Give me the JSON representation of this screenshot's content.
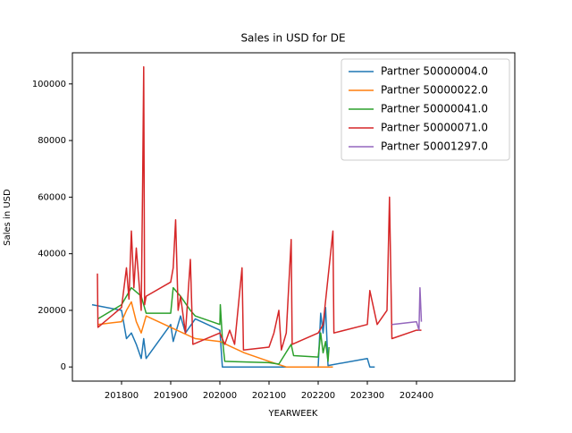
{
  "chart_data": {
    "type": "line",
    "title": "Sales in USD for DE",
    "x_label": "YEARWEEK",
    "y_label": "Sales in USD",
    "xlim": [
      201700,
      202600
    ],
    "xticks": [
      201800,
      201900,
      202000,
      202100,
      202200,
      202300,
      202400
    ],
    "ylim": [
      -5000,
      111000
    ],
    "yticks": [
      0,
      20000,
      40000,
      60000,
      80000,
      100000
    ],
    "legend": "upper right",
    "series": [
      {
        "name": "Partner 50000004.0",
        "color": "#1f77b4",
        "x": [
          201740,
          201800,
          201810,
          201820,
          201830,
          201840,
          201845,
          201850,
          201900,
          201905,
          201920,
          201930,
          201950,
          202000,
          202005,
          202100,
          202200,
          202205,
          202210,
          202215,
          202220,
          202300,
          202305,
          202315
        ],
        "values": [
          22000,
          20000,
          10000,
          12000,
          8000,
          3000,
          10000,
          3000,
          15000,
          9000,
          18000,
          12000,
          17000,
          13000,
          0,
          0,
          0,
          19000,
          12000,
          21000,
          500,
          3000,
          0,
          0
        ]
      },
      {
        "name": "Partner 50000022.0",
        "color": "#ff7f0e",
        "x": [
          201752,
          201800,
          201810,
          201820,
          201830,
          201840,
          201850,
          201900,
          201950,
          202000,
          202050,
          202100,
          202135,
          202230
        ],
        "values": [
          15000,
          16000,
          20000,
          23000,
          16000,
          12000,
          18000,
          14000,
          10000,
          9000,
          5000,
          2000,
          0,
          0
        ]
      },
      {
        "name": "Partner 50000041.0",
        "color": "#2ca02c",
        "x": [
          201752,
          201800,
          201820,
          201840,
          201850,
          201900,
          201905,
          201920,
          201940,
          201950,
          202000,
          202001,
          202005,
          202010,
          202100,
          202120,
          202145,
          202150,
          202200,
          202205,
          202210,
          202215,
          202220,
          202222
        ],
        "values": [
          17000,
          22000,
          28000,
          25000,
          19000,
          19000,
          28000,
          25000,
          20000,
          18000,
          15000,
          22000,
          10000,
          2000,
          1500,
          1000,
          8000,
          4000,
          3500,
          12000,
          5000,
          9000,
          2000,
          7000
        ]
      },
      {
        "name": "Partner 50000071.0",
        "color": "#d62728",
        "x": [
          201751,
          201752,
          201800,
          201810,
          201815,
          201820,
          201825,
          201830,
          201840,
          201843,
          201845,
          201847,
          201850,
          201900,
          201905,
          201910,
          201915,
          201920,
          201930,
          201940,
          201945,
          202000,
          202010,
          202020,
          202030,
          202045,
          202048,
          202100,
          202110,
          202120,
          202125,
          202135,
          202145,
          202147,
          202200,
          202210,
          202230,
          202232,
          202300,
          202305,
          202320,
          202340,
          202345,
          202350,
          202400,
          202410
        ],
        "values": [
          33000,
          14000,
          21000,
          35000,
          24000,
          48000,
          28000,
          42000,
          20000,
          65000,
          106000,
          22000,
          25000,
          30000,
          35000,
          52000,
          20000,
          25000,
          12000,
          38000,
          8000,
          12000,
          8000,
          13000,
          8000,
          35000,
          6000,
          7000,
          12000,
          20000,
          6000,
          12000,
          45000,
          8000,
          12000,
          15000,
          48000,
          12000,
          15000,
          27000,
          15000,
          20000,
          60000,
          10000,
          13000,
          13000
        ]
      },
      {
        "name": "Partner 50001297.0",
        "color": "#9467bd",
        "x": [
          202350,
          202400,
          202405,
          202407,
          202410
        ],
        "values": [
          15000,
          16000,
          13000,
          28000,
          16000
        ]
      }
    ]
  }
}
